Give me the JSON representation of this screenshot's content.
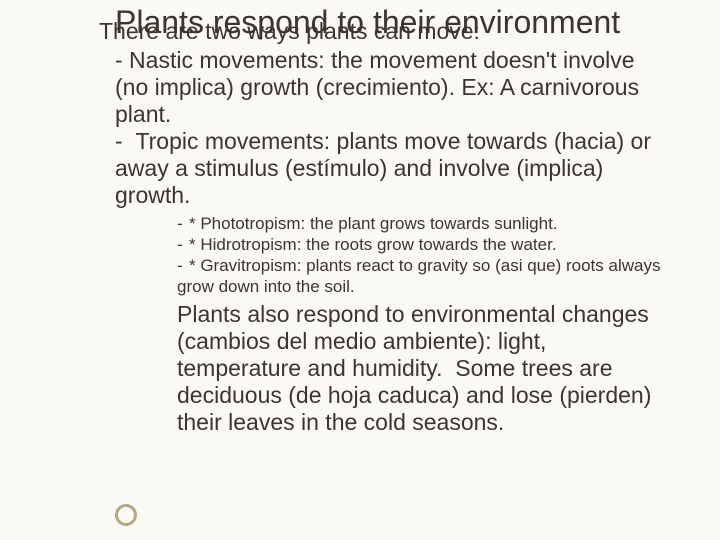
{
  "colors": {
    "background": "#fbf9f3",
    "text": "#3a362f",
    "ring": "#b3a984"
  },
  "typography": {
    "title_fontsize": 32,
    "body_fontsize": 23,
    "sub_fontsize": 17,
    "font_family": "Arial"
  },
  "title": "Plants respond to their environment",
  "intro": "There are two ways plants can move:",
  "nastic": "- Nastic movements: the movement doesn't involve (no implica) growth (crecimiento). Ex: A carnivorous plant.",
  "tropic_lead": "-  Tropic movements: plants move towards (hacia) or away a stimulus (estímulo) and involve (implica) growth.",
  "sub": {
    "a": "* Phototropism: the plant grows towards sunlight.",
    "b": "* Hidrotropism: the roots grow towards the water.",
    "c": "* Gravitropism: plants react to gravity so (asi que) roots always grow down into the soil."
  },
  "conclusion": "Plants also respond to environmental changes  (cambios del medio ambiente): light, temperature and humidity.  Some trees are deciduous (de hoja caduca) and lose (pierden) their leaves in the cold seasons."
}
